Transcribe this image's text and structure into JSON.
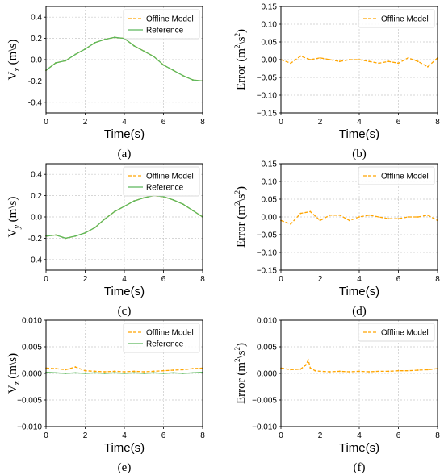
{
  "chart_data": [
    {
      "type": "line",
      "caption": "(a)",
      "xlabel": "Time(s)",
      "ylabel": "Vx (m\\s)",
      "ylabel_main": "V",
      "ylabel_sub": "x",
      "ylabel_unit": " (m\\s)",
      "xlim": [
        0,
        8
      ],
      "ylim": [
        -0.5,
        0.5
      ],
      "xticks": [
        0,
        2,
        4,
        6,
        8
      ],
      "xtick_labels": [
        "0",
        "2",
        "4",
        "6",
        "8"
      ],
      "yticks": [
        -0.4,
        -0.2,
        0.0,
        0.2,
        0.4
      ],
      "ytick_labels": [
        "-0.4",
        "-0.2",
        "0.0",
        "0.2",
        "0.4"
      ],
      "grid": true,
      "legend": "top-right",
      "series": [
        {
          "name": "Offline Model",
          "style": "dashed",
          "color": "#FFA500",
          "x": [
            0,
            0.5,
            1,
            1.5,
            2,
            2.5,
            3,
            3.5,
            4,
            4.5,
            5,
            5.5,
            6,
            6.5,
            7,
            7.5,
            8
          ],
          "y": [
            -0.1,
            -0.03,
            -0.01,
            0.05,
            0.1,
            0.16,
            0.19,
            0.21,
            0.2,
            0.13,
            0.08,
            0.03,
            -0.05,
            -0.1,
            -0.15,
            -0.19,
            -0.2
          ]
        },
        {
          "name": "Reference",
          "style": "solid",
          "color": "#5cb85c",
          "x": [
            0,
            0.5,
            1,
            1.5,
            2,
            2.5,
            3,
            3.5,
            4,
            4.5,
            5,
            5.5,
            6,
            6.5,
            7,
            7.5,
            8
          ],
          "y": [
            -0.1,
            -0.03,
            -0.01,
            0.05,
            0.1,
            0.16,
            0.19,
            0.21,
            0.2,
            0.13,
            0.08,
            0.03,
            -0.05,
            -0.1,
            -0.15,
            -0.19,
            -0.2
          ]
        }
      ]
    },
    {
      "type": "line",
      "caption": "(b)",
      "xlabel": "Time(s)",
      "ylabel": "Error (m²\\s²)",
      "ylabel_main": "Error  (m",
      "ylabel_sup1": "2",
      "ylabel_mid": "\\s",
      "ylabel_sup2": "2",
      "ylabel_end": ")",
      "xlim": [
        0,
        8
      ],
      "ylim": [
        -0.15,
        0.15
      ],
      "xticks": [
        0,
        2,
        4,
        6,
        8
      ],
      "xtick_labels": [
        "0",
        "2",
        "4",
        "6",
        "8"
      ],
      "yticks": [
        -0.15,
        -0.1,
        -0.05,
        0.0,
        0.05,
        0.1,
        0.15
      ],
      "ytick_labels": [
        "−0.15",
        "−0.10",
        "−0.05",
        "0.00",
        "0.05",
        "0.10",
        "0.15"
      ],
      "grid": true,
      "legend": "top-right",
      "series": [
        {
          "name": "Offline Model",
          "style": "dashed",
          "color": "#FFA500",
          "x": [
            0,
            0.5,
            1,
            1.5,
            2,
            2.5,
            3,
            3.5,
            4,
            4.5,
            5,
            5.5,
            6,
            6.5,
            7,
            7.5,
            8
          ],
          "y": [
            0.0,
            -0.01,
            0.01,
            0.0,
            0.005,
            0.0,
            -0.005,
            0.0,
            0.0,
            -0.005,
            -0.01,
            -0.005,
            -0.01,
            0.005,
            -0.005,
            -0.02,
            0.005
          ]
        }
      ]
    },
    {
      "type": "line",
      "caption": "(c)",
      "xlabel": "Time(s)",
      "ylabel": "Vy (m\\s)",
      "ylabel_main": "V",
      "ylabel_sub": "y",
      "ylabel_unit": " (m\\s)",
      "xlim": [
        0,
        8
      ],
      "ylim": [
        -0.5,
        0.5
      ],
      "xticks": [
        0,
        2,
        4,
        6,
        8
      ],
      "xtick_labels": [
        "0",
        "2",
        "4",
        "6",
        "8"
      ],
      "yticks": [
        -0.4,
        -0.2,
        0.0,
        0.2,
        0.4
      ],
      "ytick_labels": [
        "-0.4",
        "-0.2",
        "0.0",
        "0.2",
        "0.4"
      ],
      "grid": true,
      "legend": "top-right",
      "series": [
        {
          "name": "Offline Model",
          "style": "dashed",
          "color": "#FFA500",
          "x": [
            0,
            0.5,
            1,
            1.5,
            2,
            2.5,
            3,
            3.5,
            4,
            4.5,
            5,
            5.5,
            6,
            6.5,
            7,
            7.5,
            8
          ],
          "y": [
            -0.18,
            -0.17,
            -0.2,
            -0.18,
            -0.15,
            -0.1,
            -0.02,
            0.05,
            0.1,
            0.15,
            0.18,
            0.2,
            0.19,
            0.16,
            0.12,
            0.06,
            0.0
          ]
        },
        {
          "name": "Reference",
          "style": "solid",
          "color": "#5cb85c",
          "x": [
            0,
            0.5,
            1,
            1.5,
            2,
            2.5,
            3,
            3.5,
            4,
            4.5,
            5,
            5.5,
            6,
            6.5,
            7,
            7.5,
            8
          ],
          "y": [
            -0.18,
            -0.17,
            -0.2,
            -0.18,
            -0.15,
            -0.1,
            -0.02,
            0.05,
            0.1,
            0.15,
            0.18,
            0.2,
            0.19,
            0.16,
            0.12,
            0.06,
            0.0
          ]
        }
      ]
    },
    {
      "type": "line",
      "caption": "(d)",
      "xlabel": "Time(s)",
      "ylabel": "Error (m²\\s²)",
      "ylabel_main": "Error  (m",
      "ylabel_sup1": "2",
      "ylabel_mid": "\\s",
      "ylabel_sup2": "2",
      "ylabel_end": ")",
      "xlim": [
        0,
        8
      ],
      "ylim": [
        -0.15,
        0.15
      ],
      "xticks": [
        0,
        2,
        4,
        6,
        8
      ],
      "xtick_labels": [
        "0",
        "2",
        "4",
        "6",
        "8"
      ],
      "yticks": [
        -0.15,
        -0.1,
        -0.05,
        0.0,
        0.05,
        0.1,
        0.15
      ],
      "ytick_labels": [
        "−0.15",
        "−0.10",
        "−0.05",
        "0.00",
        "0.05",
        "0.10",
        "0.15"
      ],
      "grid": true,
      "legend": "top-right",
      "series": [
        {
          "name": "Offline Model",
          "style": "dashed",
          "color": "#FFA500",
          "x": [
            0,
            0.5,
            1,
            1.5,
            2,
            2.5,
            3,
            3.5,
            4,
            4.5,
            5,
            5.5,
            6,
            6.5,
            7,
            7.5,
            8
          ],
          "y": [
            -0.01,
            -0.02,
            0.01,
            0.015,
            -0.01,
            0.005,
            0.005,
            -0.01,
            0.0,
            0.005,
            0.0,
            -0.005,
            -0.005,
            0.0,
            0.0,
            0.005,
            -0.01
          ]
        }
      ]
    },
    {
      "type": "line",
      "caption": "(e)",
      "xlabel": "Time(s)",
      "ylabel": "Vz (m\\s)",
      "ylabel_main": "V",
      "ylabel_sub": "z",
      "ylabel_unit": " (m\\s)",
      "xlim": [
        0,
        8
      ],
      "ylim": [
        -0.01,
        0.01
      ],
      "xticks": [
        0,
        2,
        4,
        6,
        8
      ],
      "xtick_labels": [
        "0",
        "2",
        "4",
        "6",
        "8"
      ],
      "yticks": [
        -0.01,
        -0.005,
        0.0,
        0.005,
        0.01
      ],
      "ytick_labels": [
        "−0.010",
        "−0.005",
        "0.000",
        "0.005",
        "0.010"
      ],
      "grid": true,
      "legend": "top-right",
      "series": [
        {
          "name": "Offline Model",
          "style": "dashed",
          "color": "#FFA500",
          "x": [
            0,
            0.5,
            1,
            1.5,
            2,
            2.5,
            3,
            3.5,
            4,
            4.5,
            5,
            5.5,
            6,
            6.5,
            7,
            7.5,
            8
          ],
          "y": [
            0.001,
            0.0009,
            0.0007,
            0.0012,
            0.0005,
            0.0004,
            0.0003,
            0.0004,
            0.0003,
            0.0004,
            0.0003,
            0.0004,
            0.0005,
            0.0006,
            0.0007,
            0.0009,
            0.001
          ]
        },
        {
          "name": "Reference",
          "style": "solid",
          "color": "#5cb85c",
          "x": [
            0,
            0.5,
            1,
            1.5,
            2,
            2.5,
            3,
            3.5,
            4,
            4.5,
            5,
            5.5,
            6,
            6.5,
            7,
            7.5,
            8
          ],
          "y": [
            0.0002,
            0.0001,
            0.0,
            0.0001,
            0.0,
            0.0001,
            0.0,
            0.0001,
            0.0,
            0.0001,
            0.0,
            0.0001,
            0.0,
            0.0001,
            0.0,
            0.0001,
            0.0002
          ]
        }
      ]
    },
    {
      "type": "line",
      "caption": "(f)",
      "xlabel": "Time(s)",
      "ylabel": "Error (m²\\s²)",
      "ylabel_main": "Error  (m",
      "ylabel_sup1": "2",
      "ylabel_mid": "\\s",
      "ylabel_sup2": "2",
      "ylabel_end": ")",
      "xlim": [
        0,
        8
      ],
      "ylim": [
        -0.01,
        0.01
      ],
      "xticks": [
        0,
        2,
        4,
        6,
        8
      ],
      "xtick_labels": [
        "0",
        "2",
        "4",
        "6",
        "8"
      ],
      "yticks": [
        -0.01,
        -0.005,
        0.0,
        0.005,
        0.01
      ],
      "ytick_labels": [
        "−0.010",
        "−0.005",
        "0.000",
        "0.005",
        "0.010"
      ],
      "grid": true,
      "legend": "top-right",
      "series": [
        {
          "name": "Offline Model",
          "style": "dashed",
          "color": "#FFA500",
          "x": [
            0,
            0.5,
            1,
            1.25,
            1.4,
            1.5,
            1.75,
            2,
            2.5,
            3,
            3.5,
            4,
            4.5,
            5,
            5.5,
            6,
            6.5,
            7,
            7.5,
            8
          ],
          "y": [
            0.001,
            0.0007,
            0.0008,
            0.0015,
            0.0025,
            0.001,
            0.0005,
            0.0004,
            0.0003,
            0.0004,
            0.0003,
            0.0004,
            0.0003,
            0.0004,
            0.0004,
            0.0005,
            0.0005,
            0.0006,
            0.0007,
            0.0009
          ]
        }
      ]
    }
  ]
}
